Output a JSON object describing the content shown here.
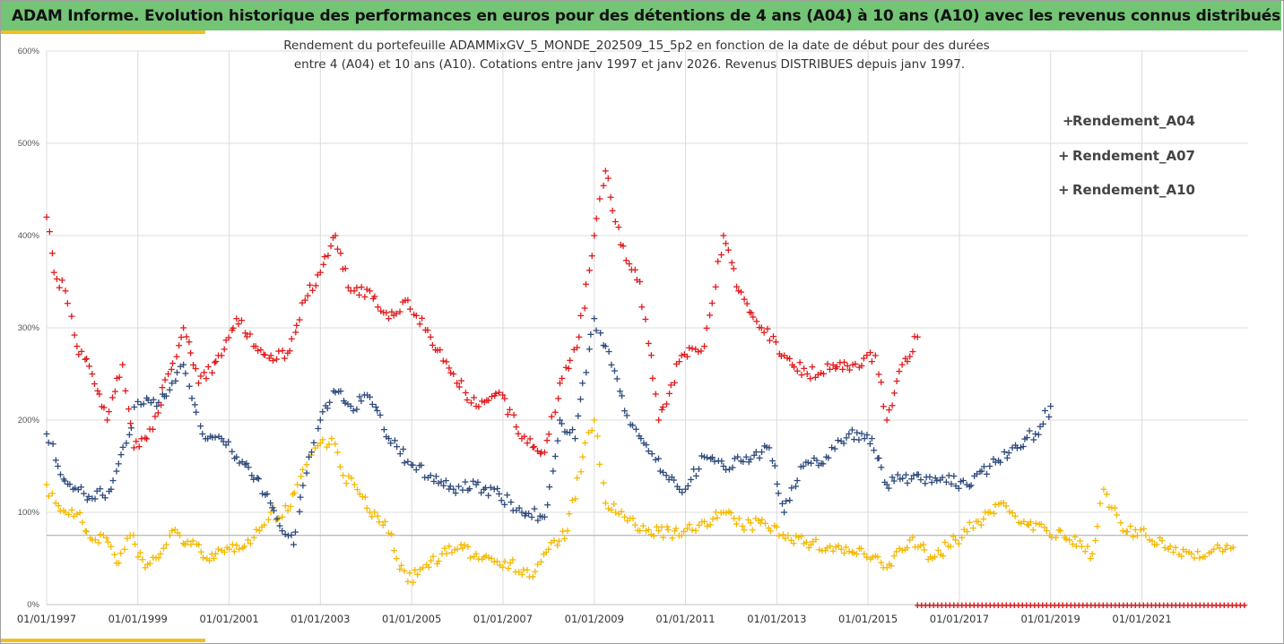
{
  "header": {
    "title": "ADAM Informe. Evolution historique des performances en euros pour des détentions de 4 ans (A04) à 10 ans (A10) avec les revenus connus distribués"
  },
  "colors": {
    "banner": "#74c476",
    "accent": "#f0c020"
  },
  "chart_data": {
    "type": "scatter",
    "title": "",
    "subtitle_lines": [
      "Rendement du portefeuille ADAMMixGV_5_MONDE_202509_15_5p2 en fonction de la date de début pour des durées",
      "entre 4 (A04) et 10 ans (A10). Cotations entre janv 1997 et janv 2026. Revenus DISTRIBUES depuis janv 1997."
    ],
    "xlabel": "",
    "ylabel": "",
    "x_range": [
      "1997-01-01",
      "2023-05-01"
    ],
    "ylim": [
      0,
      600
    ],
    "y_ticks": [
      "0%",
      "100%",
      "200%",
      "300%",
      "400%",
      "500%",
      "600%"
    ],
    "x_ticks": [
      "01/01/1997",
      "01/01/1999",
      "01/01/2001",
      "01/01/2003",
      "01/01/2005",
      "01/01/2007",
      "01/01/2009",
      "01/01/2011",
      "01/01/2013",
      "01/01/2015",
      "01/01/2017",
      "01/01/2019",
      "01/01/2021"
    ],
    "reference_line": 75,
    "grid": true,
    "legend_position": "right",
    "marker": "+",
    "series": [
      {
        "name": "Rendement_A04",
        "color": "#f5b800",
        "points": [
          [
            "1997-01-01",
            130
          ],
          [
            "1997-03-15",
            110
          ],
          [
            "1997-06-01",
            100
          ],
          [
            "1997-09-01",
            98
          ],
          [
            "1998-01-01",
            70
          ],
          [
            "1998-04-01",
            75
          ],
          [
            "1998-08-01",
            45
          ],
          [
            "1998-11-01",
            75
          ],
          [
            "1999-03-01",
            40
          ],
          [
            "1999-07-01",
            55
          ],
          [
            "1999-10-01",
            80
          ],
          [
            "2000-03-01",
            65
          ],
          [
            "2000-09-01",
            50
          ],
          [
            "2001-01-01",
            60
          ],
          [
            "2001-06-01",
            70
          ],
          [
            "2001-09-01",
            80
          ],
          [
            "2001-12-01",
            100
          ],
          [
            "2002-03-01",
            95
          ],
          [
            "2002-07-01",
            130
          ],
          [
            "2002-10-01",
            160
          ],
          [
            "2003-01-01",
            175
          ],
          [
            "2003-04-01",
            180
          ],
          [
            "2003-07-01",
            140
          ],
          [
            "2003-10-01",
            130
          ],
          [
            "2004-02-01",
            100
          ],
          [
            "2004-06-01",
            90
          ],
          [
            "2004-09-01",
            50
          ],
          [
            "2004-12-01",
            25
          ],
          [
            "2005-04-01",
            40
          ],
          [
            "2005-09-01",
            55
          ],
          [
            "2006-01-01",
            60
          ],
          [
            "2006-06-01",
            55
          ],
          [
            "2006-10-01",
            50
          ],
          [
            "2007-03-01",
            45
          ],
          [
            "2007-08-01",
            30
          ],
          [
            "2008-01-01",
            60
          ],
          [
            "2008-06-01",
            80
          ],
          [
            "2008-10-01",
            160
          ],
          [
            "2009-01-01",
            200
          ],
          [
            "2009-04-01",
            110
          ],
          [
            "2009-09-01",
            95
          ],
          [
            "2010-01-01",
            80
          ],
          [
            "2010-06-01",
            80
          ],
          [
            "2010-12-01",
            75
          ],
          [
            "2011-06-01",
            90
          ],
          [
            "2011-11-01",
            100
          ],
          [
            "2012-04-01",
            85
          ],
          [
            "2012-10-01",
            88
          ],
          [
            "2013-04-01",
            75
          ],
          [
            "2013-10-01",
            65
          ],
          [
            "2014-06-01",
            60
          ],
          [
            "2014-12-01",
            55
          ],
          [
            "2015-06-01",
            40
          ],
          [
            "2015-12-01",
            70
          ],
          [
            "2016-06-01",
            50
          ],
          [
            "2016-12-01",
            70
          ],
          [
            "2017-06-01",
            90
          ],
          [
            "2017-12-01",
            110
          ],
          [
            "2018-06-01",
            90
          ],
          [
            "2018-12-01",
            80
          ],
          [
            "2019-06-01",
            70
          ],
          [
            "2019-12-01",
            55
          ],
          [
            "2020-03-01",
            125
          ],
          [
            "2020-08-01",
            80
          ],
          [
            "2021-02-01",
            75
          ],
          [
            "2021-08-01",
            60
          ],
          [
            "2022-02-01",
            55
          ],
          [
            "2022-08-01",
            60
          ],
          [
            "2023-01-01",
            62
          ]
        ]
      },
      {
        "name": "Rendement_A07",
        "color": "#2f4b7c",
        "points": [
          [
            "1997-01-01",
            185
          ],
          [
            "1997-04-01",
            150
          ],
          [
            "1997-08-01",
            125
          ],
          [
            "1998-01-01",
            115
          ],
          [
            "1998-06-01",
            125
          ],
          [
            "1998-10-01",
            175
          ],
          [
            "1999-01-01",
            220
          ],
          [
            "1999-06-01",
            215
          ],
          [
            "1999-10-01",
            240
          ],
          [
            "2000-01-01",
            260
          ],
          [
            "2000-06-01",
            185
          ],
          [
            "2000-11-01",
            180
          ],
          [
            "2001-03-01",
            160
          ],
          [
            "2001-07-01",
            140
          ],
          [
            "2001-11-01",
            120
          ],
          [
            "2002-03-01",
            80
          ],
          [
            "2002-06-01",
            65
          ],
          [
            "2002-10-01",
            160
          ],
          [
            "2003-01-01",
            200
          ],
          [
            "2003-05-01",
            230
          ],
          [
            "2003-09-01",
            215
          ],
          [
            "2004-02-01",
            225
          ],
          [
            "2004-07-01",
            180
          ],
          [
            "2004-12-01",
            155
          ],
          [
            "2005-06-01",
            140
          ],
          [
            "2005-12-01",
            125
          ],
          [
            "2006-06-01",
            130
          ],
          [
            "2006-12-01",
            120
          ],
          [
            "2007-06-01",
            100
          ],
          [
            "2007-12-01",
            95
          ],
          [
            "2008-04-01",
            200
          ],
          [
            "2008-08-01",
            180
          ],
          [
            "2009-01-01",
            310
          ],
          [
            "2009-04-01",
            280
          ],
          [
            "2009-09-01",
            210
          ],
          [
            "2010-02-01",
            175
          ],
          [
            "2010-08-01",
            140
          ],
          [
            "2011-01-01",
            125
          ],
          [
            "2011-06-01",
            160
          ],
          [
            "2011-11-01",
            150
          ],
          [
            "2012-05-01",
            160
          ],
          [
            "2012-11-01",
            170
          ],
          [
            "2013-03-01",
            100
          ],
          [
            "2013-08-01",
            150
          ],
          [
            "2014-02-01",
            160
          ],
          [
            "2014-08-01",
            185
          ],
          [
            "2015-02-01",
            180
          ],
          [
            "2015-06-01",
            130
          ],
          [
            "2016-01-01",
            140
          ],
          [
            "2016-08-01",
            135
          ],
          [
            "2017-03-01",
            130
          ],
          [
            "2017-09-01",
            150
          ],
          [
            "2018-03-01",
            170
          ],
          [
            "2018-09-01",
            185
          ],
          [
            "2019-01-01",
            215
          ]
        ]
      },
      {
        "name": "Rendement_A10",
        "color": "#e31a1c",
        "points": [
          [
            "1997-01-01",
            420
          ],
          [
            "1997-03-01",
            360
          ],
          [
            "1997-06-01",
            340
          ],
          [
            "1997-09-01",
            280
          ],
          [
            "1998-01-01",
            250
          ],
          [
            "1998-05-01",
            200
          ],
          [
            "1998-09-01",
            260
          ],
          [
            "1998-12-01",
            170
          ],
          [
            "1999-05-01",
            190
          ],
          [
            "1999-09-01",
            250
          ],
          [
            "2000-01-01",
            300
          ],
          [
            "2000-05-01",
            240
          ],
          [
            "2000-11-01",
            270
          ],
          [
            "2001-03-01",
            310
          ],
          [
            "2001-08-01",
            280
          ],
          [
            "2001-12-01",
            270
          ],
          [
            "2002-05-01",
            275
          ],
          [
            "2002-09-01",
            330
          ],
          [
            "2003-01-01",
            360
          ],
          [
            "2003-05-01",
            400
          ],
          [
            "2003-09-01",
            340
          ],
          [
            "2004-02-01",
            340
          ],
          [
            "2004-07-01",
            310
          ],
          [
            "2004-12-01",
            330
          ],
          [
            "2005-06-01",
            290
          ],
          [
            "2005-12-01",
            250
          ],
          [
            "2006-06-01",
            215
          ],
          [
            "2006-12-01",
            230
          ],
          [
            "2007-06-01",
            180
          ],
          [
            "2007-12-01",
            165
          ],
          [
            "2008-04-01",
            240
          ],
          [
            "2008-09-01",
            290
          ],
          [
            "2009-01-01",
            400
          ],
          [
            "2009-04-01",
            470
          ],
          [
            "2009-08-01",
            390
          ],
          [
            "2010-01-01",
            350
          ],
          [
            "2010-06-01",
            200
          ],
          [
            "2010-12-01",
            270
          ],
          [
            "2011-06-01",
            280
          ],
          [
            "2011-11-01",
            400
          ],
          [
            "2012-03-01",
            340
          ],
          [
            "2012-09-01",
            300
          ],
          [
            "2013-03-01",
            270
          ],
          [
            "2013-09-01",
            250
          ],
          [
            "2014-03-01",
            255
          ],
          [
            "2014-09-01",
            260
          ],
          [
            "2015-03-01",
            270
          ],
          [
            "2015-06-01",
            200
          ],
          [
            "2015-10-01",
            260
          ],
          [
            "2016-02-01",
            290
          ]
        ]
      }
    ]
  }
}
